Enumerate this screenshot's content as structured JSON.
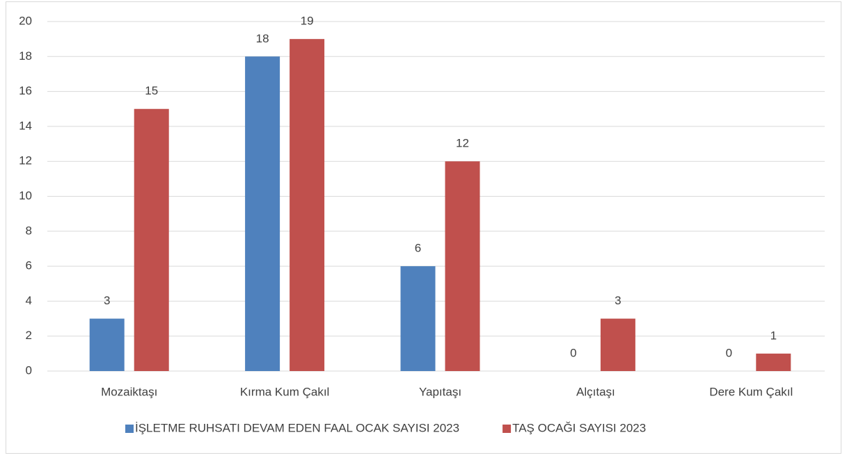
{
  "chart_data": {
    "type": "bar",
    "categories": [
      "Mozaiktaşı",
      "Kırma Kum Çakıl",
      "Yapıtaşı",
      "Alçıtaşı",
      "Dere Kum Çakıl"
    ],
    "series": [
      {
        "name": "İŞLETME RUHSATI DEVAM EDEN FAAL OCAK SAYISI 2023",
        "color": "#4f81bd",
        "values": [
          3,
          18,
          6,
          0,
          0
        ]
      },
      {
        "name": "TAŞ OCAĞI SAYISI 2023",
        "color": "#c0504d",
        "values": [
          15,
          19,
          12,
          3,
          1
        ]
      }
    ],
    "ylim": [
      0,
      20
    ],
    "yticks": [
      0,
      2,
      4,
      6,
      8,
      10,
      12,
      14,
      16,
      18,
      20
    ],
    "grid": true,
    "legend": "bottom"
  }
}
